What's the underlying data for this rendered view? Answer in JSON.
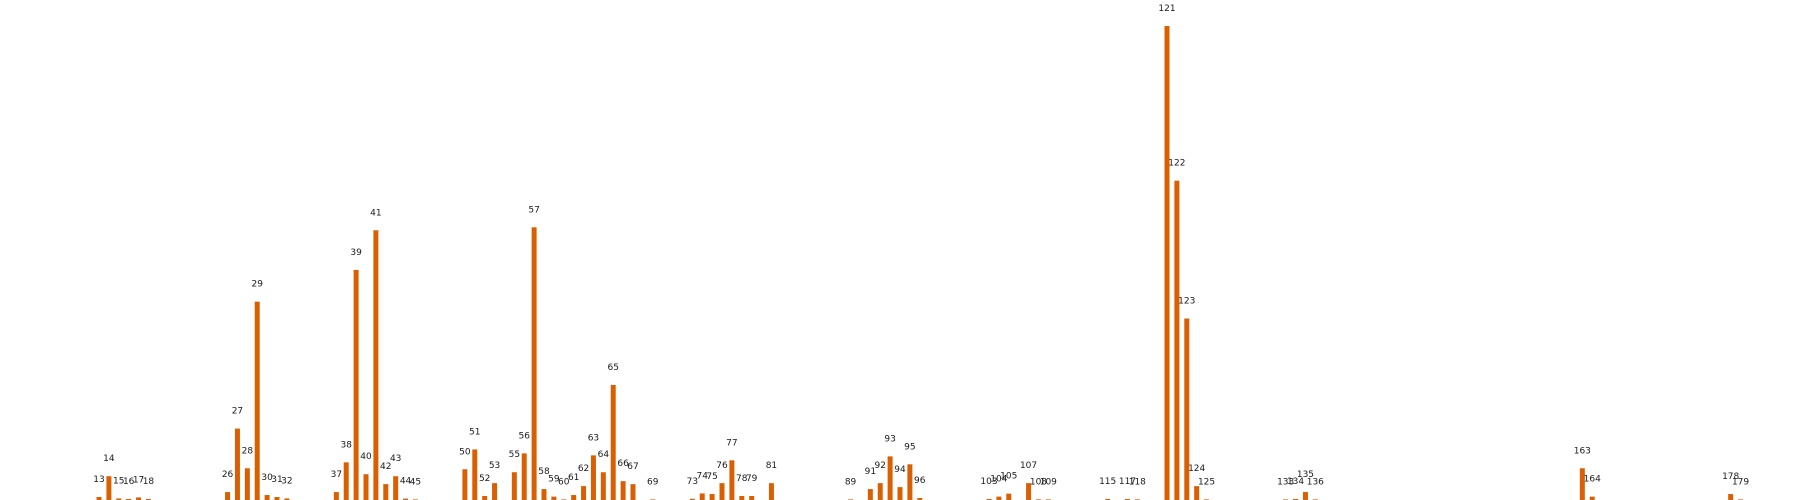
{
  "chart_data": {
    "type": "bar",
    "title": "",
    "xlabel": "",
    "ylabel": "",
    "color": "#d95f02",
    "grid": false,
    "axes_visible": false,
    "x_range": [
      4,
      184
    ],
    "ylim": [
      0,
      240
    ],
    "bars": [
      {
        "x": 13,
        "value": 1.5
      },
      {
        "x": 14,
        "value": 12
      },
      {
        "x": 15,
        "value": 0.8
      },
      {
        "x": 16,
        "value": 0.5
      },
      {
        "x": 17,
        "value": 1.3
      },
      {
        "x": 18,
        "value": 0.5
      },
      {
        "x": 26,
        "value": 4
      },
      {
        "x": 27,
        "value": 36
      },
      {
        "x": 28,
        "value": 16
      },
      {
        "x": 29,
        "value": 100
      },
      {
        "x": 30,
        "value": 2.5
      },
      {
        "x": 31,
        "value": 1.5
      },
      {
        "x": 32,
        "value": 0.8
      },
      {
        "x": 37,
        "value": 4
      },
      {
        "x": 38,
        "value": 19
      },
      {
        "x": 39,
        "value": 116
      },
      {
        "x": 40,
        "value": 13
      },
      {
        "x": 41,
        "value": 136
      },
      {
        "x": 42,
        "value": 8
      },
      {
        "x": 43,
        "value": 12
      },
      {
        "x": 44,
        "value": 0.7
      },
      {
        "x": 45,
        "value": 0.3
      },
      {
        "x": 50,
        "value": 15.5
      },
      {
        "x": 51,
        "value": 25.5
      },
      {
        "x": 52,
        "value": 2
      },
      {
        "x": 53,
        "value": 8.5
      },
      {
        "x": 55,
        "value": 14
      },
      {
        "x": 56,
        "value": 23.5
      },
      {
        "x": 57,
        "value": 137.5
      },
      {
        "x": 58,
        "value": 5.5
      },
      {
        "x": 59,
        "value": 1.7
      },
      {
        "x": 60,
        "value": 0.2
      },
      {
        "x": 61,
        "value": 2.5
      },
      {
        "x": 62,
        "value": 7
      },
      {
        "x": 63,
        "value": 22.5
      },
      {
        "x": 64,
        "value": 14
      },
      {
        "x": 65,
        "value": 58
      },
      {
        "x": 66,
        "value": 9.5
      },
      {
        "x": 67,
        "value": 8
      },
      {
        "x": 69,
        "value": 0.2
      },
      {
        "x": 73,
        "value": 0.6
      },
      {
        "x": 74,
        "value": 3.3
      },
      {
        "x": 75,
        "value": 3
      },
      {
        "x": 76,
        "value": 8.5
      },
      {
        "x": 77,
        "value": 20
      },
      {
        "x": 78,
        "value": 2
      },
      {
        "x": 79,
        "value": 2
      },
      {
        "x": 81,
        "value": 8.5
      },
      {
        "x": 89,
        "value": 0.2
      },
      {
        "x": 91,
        "value": 5.5
      },
      {
        "x": 92,
        "value": 8.5
      },
      {
        "x": 93,
        "value": 22
      },
      {
        "x": 94,
        "value": 6.5
      },
      {
        "x": 95,
        "value": 18
      },
      {
        "x": 96,
        "value": 1
      },
      {
        "x": 103,
        "value": 0.5
      },
      {
        "x": 104,
        "value": 1.7
      },
      {
        "x": 105,
        "value": 3.2
      },
      {
        "x": 107,
        "value": 8.5
      },
      {
        "x": 108,
        "value": 0.2
      },
      {
        "x": 109,
        "value": 0.2
      },
      {
        "x": 115,
        "value": 0.5
      },
      {
        "x": 117,
        "value": 0.5
      },
      {
        "x": 118,
        "value": 0.2
      },
      {
        "x": 121,
        "value": 239
      },
      {
        "x": 122,
        "value": 161
      },
      {
        "x": 123,
        "value": 91.5
      },
      {
        "x": 124,
        "value": 7
      },
      {
        "x": 125,
        "value": 0.2
      },
      {
        "x": 133,
        "value": 0.2
      },
      {
        "x": 134,
        "value": 0.5
      },
      {
        "x": 135,
        "value": 4
      },
      {
        "x": 136,
        "value": 0.2
      },
      {
        "x": 163,
        "value": 16
      },
      {
        "x": 164,
        "value": 1.7
      },
      {
        "x": 178,
        "value": 3
      },
      {
        "x": 179,
        "value": 0.2
      }
    ]
  }
}
